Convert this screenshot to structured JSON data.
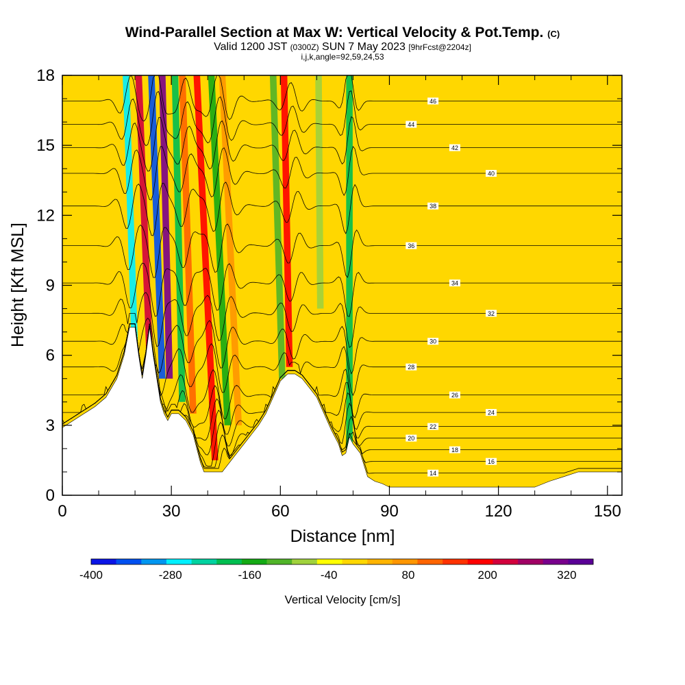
{
  "header": {
    "title_main": "Wind-Parallel Section at Max W: Vertical Velocity & Pot.Temp.",
    "title_copyright": "(C)",
    "valid_prefix": "Valid 1200 JST",
    "valid_utc": "(0300Z)",
    "valid_date": "SUN 7 May 2023",
    "forecast_tag": "[9hrFcst@2204z]",
    "indices": "i,j,k,angle=92,59,24,53"
  },
  "chart_data": {
    "type": "heatmap",
    "xlabel": "Distance [nm]",
    "ylabel": "Height [Kft MSL]",
    "xlim": [
      0,
      154
    ],
    "ylim": [
      0,
      18
    ],
    "x_ticks": [
      0,
      30,
      60,
      90,
      120,
      150
    ],
    "y_ticks": [
      0,
      3,
      6,
      9,
      12,
      15,
      18
    ],
    "colorbar": {
      "label": "Vertical Velocity [cm/s]",
      "min": -400,
      "max": 360,
      "step": 40,
      "tick_labels": [
        "-400",
        "-280",
        "-160",
        "-40",
        "80",
        "200",
        "320"
      ],
      "colors": [
        "#0a14e6",
        "#0050f0",
        "#0096f0",
        "#00f0ff",
        "#00d2a0",
        "#00be50",
        "#14aa14",
        "#50b428",
        "#a0d23c",
        "#ffff00",
        "#ffd700",
        "#ffb400",
        "#ff9600",
        "#ff6400",
        "#ff3200",
        "#ff0000",
        "#d2003c",
        "#a00064",
        "#78008c",
        "#5a0096"
      ]
    },
    "terrain_kft": [
      [
        0,
        2.9
      ],
      [
        3,
        3.2
      ],
      [
        6,
        3.5
      ],
      [
        9,
        3.8
      ],
      [
        12,
        4.2
      ],
      [
        15,
        5
      ],
      [
        17,
        6
      ],
      [
        18.5,
        7.2
      ],
      [
        20,
        7.2
      ],
      [
        21,
        6
      ],
      [
        22,
        5
      ],
      [
        23,
        6
      ],
      [
        24,
        7.2
      ],
      [
        25,
        6
      ],
      [
        26,
        5
      ],
      [
        27,
        4
      ],
      [
        28,
        3.5
      ],
      [
        29,
        3.2
      ],
      [
        30,
        3.5
      ],
      [
        32,
        3.5
      ],
      [
        34,
        3.2
      ],
      [
        36,
        2.6
      ],
      [
        38,
        1.4
      ],
      [
        39,
        1
      ],
      [
        42,
        1
      ],
      [
        44,
        1
      ],
      [
        46,
        1.4
      ],
      [
        48,
        1.8
      ],
      [
        50,
        2.2
      ],
      [
        52,
        2.6
      ],
      [
        54,
        3
      ],
      [
        56,
        3.5
      ],
      [
        58,
        4.2
      ],
      [
        60,
        4.9
      ],
      [
        62,
        5.2
      ],
      [
        64,
        5.2
      ],
      [
        66,
        5
      ],
      [
        68,
        4.6
      ],
      [
        70,
        4.2
      ],
      [
        72,
        3.5
      ],
      [
        74,
        2.8
      ],
      [
        76,
        2.2
      ],
      [
        77,
        1.7
      ],
      [
        78,
        1.8
      ],
      [
        79,
        2.5
      ],
      [
        80,
        2.2
      ],
      [
        82,
        1.8
      ],
      [
        84,
        0.8
      ],
      [
        86,
        0.6
      ],
      [
        88,
        0.5
      ],
      [
        90,
        0.35
      ],
      [
        100,
        0.35
      ],
      [
        110,
        0.35
      ],
      [
        120,
        0.35
      ],
      [
        130,
        0.35
      ],
      [
        134,
        0.6
      ],
      [
        138,
        0.8
      ],
      [
        142,
        1
      ],
      [
        146,
        1
      ],
      [
        150,
        1
      ],
      [
        154,
        1
      ]
    ],
    "updraft_bands": [
      {
        "x_base": 20,
        "x_top": 17.5,
        "y_start": 6.0,
        "w_cms": -260
      },
      {
        "x_base": 24,
        "x_top": 21,
        "y_start": 6.0,
        "w_cms": 240
      },
      {
        "x_base": 27.5,
        "x_top": 24.5,
        "y_start": 5.0,
        "w_cms": -340
      },
      {
        "x_base": 29.5,
        "x_top": 27.5,
        "y_start": 5.0,
        "w_cms": 340
      },
      {
        "x_base": 33,
        "x_top": 31,
        "y_start": 4.0,
        "w_cms": -180
      },
      {
        "x_base": 36,
        "x_top": 33,
        "y_start": 3.5,
        "w_cms": 120
      },
      {
        "x_base": 42,
        "x_top": 37,
        "y_start": 1.5,
        "w_cms": 200
      },
      {
        "x_base": 45.5,
        "x_top": 41,
        "y_start": 3.0,
        "w_cms": -140
      },
      {
        "x_base": 48.5,
        "x_top": 44,
        "y_start": 3.0,
        "w_cms": 100
      },
      {
        "x_base": 60.5,
        "x_top": 58,
        "y_start": 5.0,
        "w_cms": -120
      },
      {
        "x_base": 62.5,
        "x_top": 61,
        "y_start": 5.5,
        "w_cms": 220
      },
      {
        "x_base": 71,
        "x_top": 70.5,
        "y_start": 8.0,
        "w_cms": -80
      },
      {
        "x_base": 79,
        "x_top": 79,
        "y_start": 2.0,
        "w_cms": -200
      }
    ],
    "theta_contours": [
      {
        "label": "14",
        "base": 0.95
      },
      {
        "label": "16",
        "base": 1.45
      },
      {
        "label": "18",
        "base": 1.95
      },
      {
        "label": "20",
        "base": 2.45
      },
      {
        "label": "22",
        "base": 2.95
      },
      {
        "label": "24",
        "base": 3.55
      },
      {
        "label": "26",
        "base": 4.3
      },
      {
        "label": "28",
        "base": 5.5
      },
      {
        "label": "30",
        "base": 6.6
      },
      {
        "label": "32",
        "base": 7.8
      },
      {
        "label": "34",
        "base": 9.1
      },
      {
        "label": "36",
        "base": 10.7
      },
      {
        "label": "38",
        "base": 12.4
      },
      {
        "label": "40",
        "base": 13.8
      },
      {
        "label": "42",
        "base": 14.9
      },
      {
        "label": "44",
        "base": 15.9
      },
      {
        "label": "46",
        "base": 16.9
      }
    ]
  }
}
